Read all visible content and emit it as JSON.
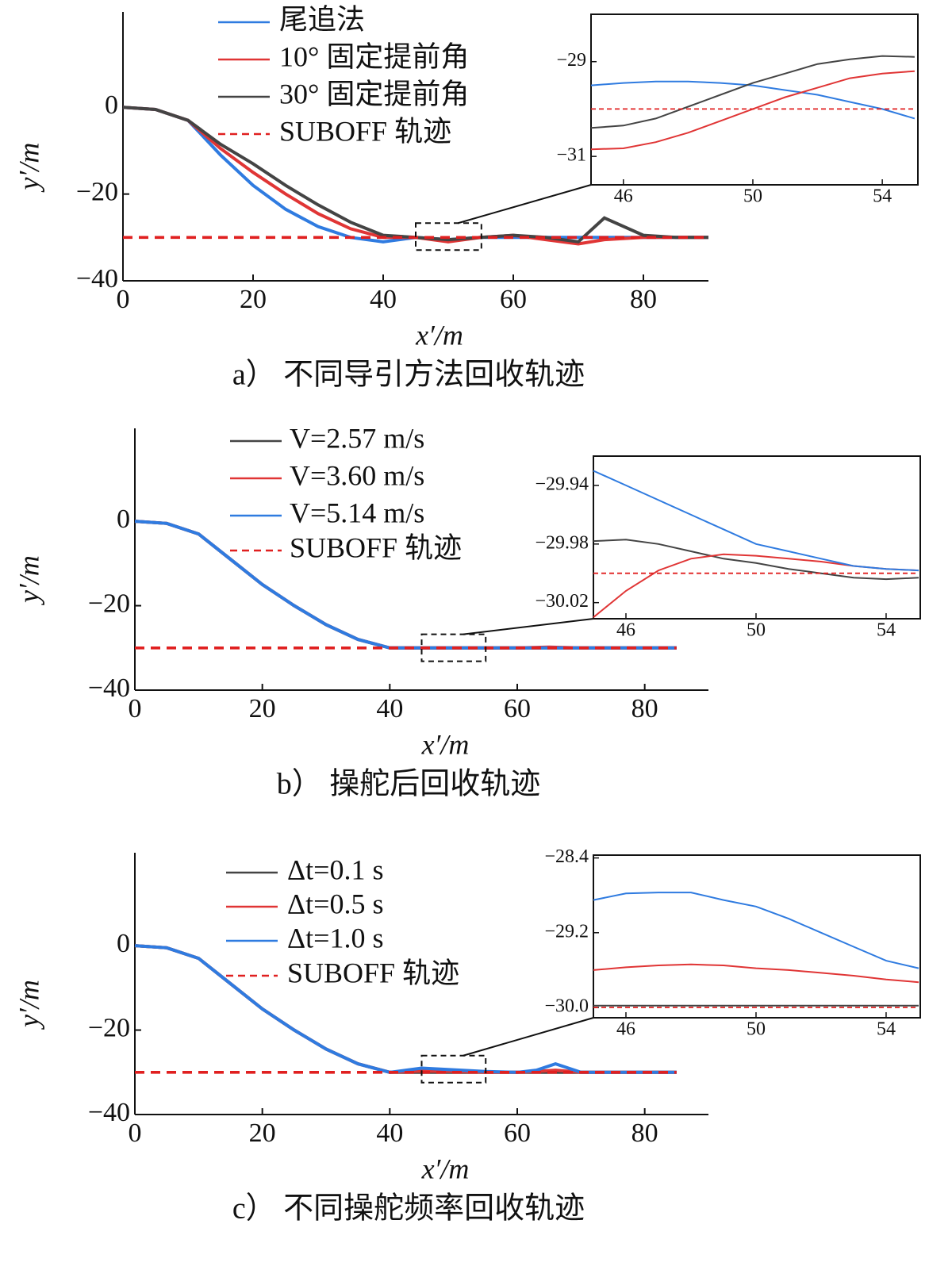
{
  "chart_data": [
    {
      "type": "line",
      "caption": "a） 不同导引方法回收轨迹",
      "xlabel": "x′/m",
      "ylabel": "y′/m",
      "xlim": [
        0,
        90
      ],
      "ylim": [
        -40,
        22
      ],
      "xticks": [
        0,
        20,
        40,
        60,
        80
      ],
      "yticks": [
        {
          "value": -40,
          "label": "−40"
        },
        {
          "value": -20,
          "label": "−20"
        },
        0
      ],
      "x": [
        0,
        5,
        10,
        15,
        20,
        25,
        30,
        35,
        40,
        45,
        50,
        55,
        60,
        65,
        70,
        74,
        80,
        85,
        90
      ],
      "series": [
        {
          "name": "尾追法",
          "color": "#2f7be0",
          "values": [
            0,
            -0.5,
            -3,
            -11,
            -18,
            -23.5,
            -27.5,
            -30,
            -31,
            -30,
            -30.5,
            -30,
            -30,
            -30,
            -30,
            -30,
            -30,
            -30,
            -30
          ]
        },
        {
          "name": "10° 固定提前角",
          "color": "#e03535",
          "values": [
            0,
            -0.5,
            -3,
            -9.5,
            -15,
            -20,
            -24.5,
            -28,
            -30,
            -30,
            -31,
            -30,
            -29.5,
            -30.5,
            -31.5,
            -30.5,
            -30,
            -30,
            -30
          ]
        },
        {
          "name": "30° 固定提前角",
          "color": "#444444",
          "values": [
            0,
            -0.5,
            -3,
            -8.5,
            -13,
            -18,
            -22.5,
            -26.5,
            -29.5,
            -30,
            -30.5,
            -30,
            -29.5,
            -30,
            -31,
            -25.5,
            -29.5,
            -30,
            -30
          ]
        },
        {
          "name": "SUBOFF 轨迹",
          "color": "#e02020",
          "dash": true,
          "values": [
            -30,
            -30,
            -30,
            -30,
            -30,
            -30,
            -30,
            -30,
            -30,
            -30,
            -30,
            -30,
            -30,
            -30,
            -30,
            -30,
            -30,
            -30,
            -30
          ]
        }
      ],
      "inset": {
        "xlim": [
          45,
          55.1
        ],
        "ylim": [
          -31.6,
          -28
        ],
        "xticks": [
          46,
          50,
          54
        ],
        "yticks": [
          {
            "value": -31,
            "label": "−31"
          },
          {
            "value": -29,
            "label": "−29"
          }
        ],
        "x": [
          45,
          46,
          47,
          48,
          49,
          50,
          51,
          52,
          53,
          54,
          55
        ],
        "series": [
          {
            "color": "#2f7be0",
            "values": [
              -29.5,
              -29.45,
              -29.42,
              -29.42,
              -29.45,
              -29.5,
              -29.6,
              -29.7,
              -29.85,
              -30,
              -30.2
            ]
          },
          {
            "color": "#e03535",
            "values": [
              -30.85,
              -30.83,
              -30.7,
              -30.5,
              -30.25,
              -30,
              -29.75,
              -29.55,
              -29.35,
              -29.25,
              -29.2
            ]
          },
          {
            "color": "#444444",
            "values": [
              -30.4,
              -30.35,
              -30.2,
              -29.95,
              -29.7,
              -29.45,
              -29.25,
              -29.05,
              -28.95,
              -28.88,
              -28.9
            ]
          },
          {
            "color": "#e02020",
            "dash": true,
            "values": [
              -30,
              -30,
              -30,
              -30,
              -30,
              -30,
              -30,
              -30,
              -30,
              -30,
              -30
            ]
          }
        ]
      }
    },
    {
      "type": "line",
      "caption": "b） 操舵后回收轨迹",
      "xlabel": "x′/m",
      "ylabel": "y′/m",
      "xlim": [
        0,
        90
      ],
      "ylim": [
        -40,
        22
      ],
      "xticks": [
        0,
        20,
        40,
        60,
        80
      ],
      "yticks": [
        {
          "value": -40,
          "label": "−40"
        },
        {
          "value": -20,
          "label": "−20"
        },
        0
      ],
      "x": [
        0,
        5,
        10,
        15,
        20,
        25,
        30,
        35,
        40,
        45,
        50,
        55,
        60,
        65,
        70,
        75,
        80,
        85
      ],
      "series": [
        {
          "name": "V=2.57 m/s",
          "color": "#444444",
          "values": [
            0,
            -0.5,
            -3,
            -9,
            -15,
            -20,
            -24.5,
            -28,
            -30,
            -30,
            -30,
            -30,
            -30,
            -30,
            -30,
            -30,
            -30,
            -30
          ]
        },
        {
          "name": "V=3.60 m/s",
          "color": "#e03535",
          "values": [
            0,
            -0.5,
            -3,
            -9,
            -15,
            -20,
            -24.5,
            -28,
            -30,
            -30,
            -30,
            -30,
            -30,
            -29.8,
            -30,
            -30,
            -30,
            -30
          ]
        },
        {
          "name": "V=5.14 m/s",
          "color": "#2f7be0",
          "values": [
            0,
            -0.5,
            -3,
            -9,
            -15,
            -20,
            -24.5,
            -28,
            -30,
            -30,
            -30,
            -30,
            -30,
            -30,
            -30,
            -30,
            -30,
            -30
          ]
        },
        {
          "name": "SUBOFF 轨迹",
          "color": "#e02020",
          "dash": true,
          "values": [
            -30,
            -30,
            -30,
            -30,
            -30,
            -30,
            -30,
            -30,
            -30,
            -30,
            -30,
            -30,
            -30,
            -30,
            -30,
            -30,
            -30,
            -30
          ]
        }
      ],
      "inset": {
        "xlim": [
          45,
          55.05
        ],
        "ylim": [
          -30.031,
          -29.92
        ],
        "xticks": [
          46,
          50,
          54
        ],
        "yticks": [
          {
            "value": -30.02,
            "label": "−30.02"
          },
          {
            "value": -29.98,
            "label": "−29.98"
          },
          {
            "value": -29.94,
            "label": "−29.94"
          }
        ],
        "x": [
          45,
          46,
          47,
          48,
          49,
          50,
          51,
          52,
          53,
          54,
          55
        ],
        "series": [
          {
            "color": "#444444",
            "values": [
              -29.978,
              -29.977,
              -29.98,
              -29.985,
              -29.99,
              -29.993,
              -29.997,
              -30.0,
              -30.003,
              -30.004,
              -30.003
            ]
          },
          {
            "color": "#e03535",
            "values": [
              -30.03,
              -30.012,
              -29.998,
              -29.99,
              -29.987,
              -29.988,
              -29.99,
              -29.992,
              -29.995,
              -29.997,
              -29.998
            ]
          },
          {
            "color": "#2f7be0",
            "values": [
              -29.93,
              -29.94,
              -29.95,
              -29.96,
              -29.97,
              -29.98,
              -29.985,
              -29.99,
              -29.995,
              -29.997,
              -29.998
            ]
          },
          {
            "color": "#e02020",
            "dash": true,
            "values": [
              -30,
              -30,
              -30,
              -30,
              -30,
              -30,
              -30,
              -30,
              -30,
              -30,
              -30
            ]
          }
        ]
      }
    },
    {
      "type": "line",
      "caption": "c） 不同操舵频率回收轨迹",
      "xlabel": "x′/m",
      "ylabel": "y′/m",
      "xlim": [
        0,
        90
      ],
      "ylim": [
        -40,
        22
      ],
      "xticks": [
        0,
        20,
        40,
        60,
        80
      ],
      "yticks": [
        {
          "value": -40,
          "label": "−40"
        },
        {
          "value": -20,
          "label": "−20"
        },
        0
      ],
      "x": [
        0,
        5,
        10,
        15,
        20,
        25,
        30,
        35,
        40,
        45,
        50,
        55,
        60,
        63,
        66,
        70,
        75,
        80,
        85
      ],
      "series": [
        {
          "name": "Δt=0.1 s",
          "color": "#444444",
          "values": [
            0,
            -0.5,
            -3,
            -9,
            -15,
            -20,
            -24.5,
            -28,
            -30,
            -30,
            -30,
            -30,
            -30,
            -30,
            -30,
            -30,
            -30,
            -30,
            -30
          ]
        },
        {
          "name": "Δt=0.5 s",
          "color": "#e03535",
          "values": [
            0,
            -0.5,
            -3,
            -9,
            -15,
            -20,
            -24.5,
            -28,
            -30,
            -29.7,
            -29.8,
            -30,
            -30,
            -29.8,
            -29.5,
            -30,
            -30,
            -30,
            -30
          ]
        },
        {
          "name": "Δt=1.0 s",
          "color": "#2f7be0",
          "values": [
            0,
            -0.5,
            -3,
            -9,
            -15,
            -20,
            -24.5,
            -28,
            -30,
            -29,
            -29.4,
            -29.8,
            -30,
            -29.5,
            -28,
            -30,
            -30,
            -30,
            -30
          ]
        },
        {
          "name": "SUBOFF 轨迹",
          "color": "#e02020",
          "dash": true,
          "values": [
            -30,
            -30,
            -30,
            -30,
            -30,
            -30,
            -30,
            -30,
            -30,
            -30,
            -30,
            -30,
            -30,
            -30,
            -30,
            -30,
            -30,
            -30,
            -30
          ]
        }
      ],
      "inset": {
        "xlim": [
          45,
          55.05
        ],
        "ylim": [
          -30.11,
          -28.37
        ],
        "xticks": [
          46,
          50,
          54
        ],
        "yticks": [
          {
            "value": -30.0,
            "label": "−30.0"
          },
          {
            "value": -29.2,
            "label": "−29.2"
          },
          {
            "value": -28.4,
            "label": "−28.4"
          }
        ],
        "x": [
          45,
          46,
          47,
          48,
          49,
          50,
          51,
          52,
          53,
          54,
          55
        ],
        "series": [
          {
            "color": "#444444",
            "values": [
              -29.98,
              -29.98,
              -29.98,
              -29.98,
              -29.98,
              -29.98,
              -29.98,
              -29.98,
              -29.98,
              -29.98,
              -29.98
            ]
          },
          {
            "color": "#e03535",
            "values": [
              -29.6,
              -29.57,
              -29.55,
              -29.54,
              -29.55,
              -29.58,
              -29.6,
              -29.63,
              -29.66,
              -29.7,
              -29.73
            ]
          },
          {
            "color": "#2f7be0",
            "values": [
              -28.85,
              -28.78,
              -28.77,
              -28.77,
              -28.85,
              -28.92,
              -29.05,
              -29.2,
              -29.35,
              -29.5,
              -29.58
            ]
          },
          {
            "color": "#e02020",
            "dash": true,
            "values": [
              -30,
              -30,
              -30,
              -30,
              -30,
              -30,
              -30,
              -30,
              -30,
              -30,
              -30
            ]
          }
        ]
      }
    }
  ]
}
